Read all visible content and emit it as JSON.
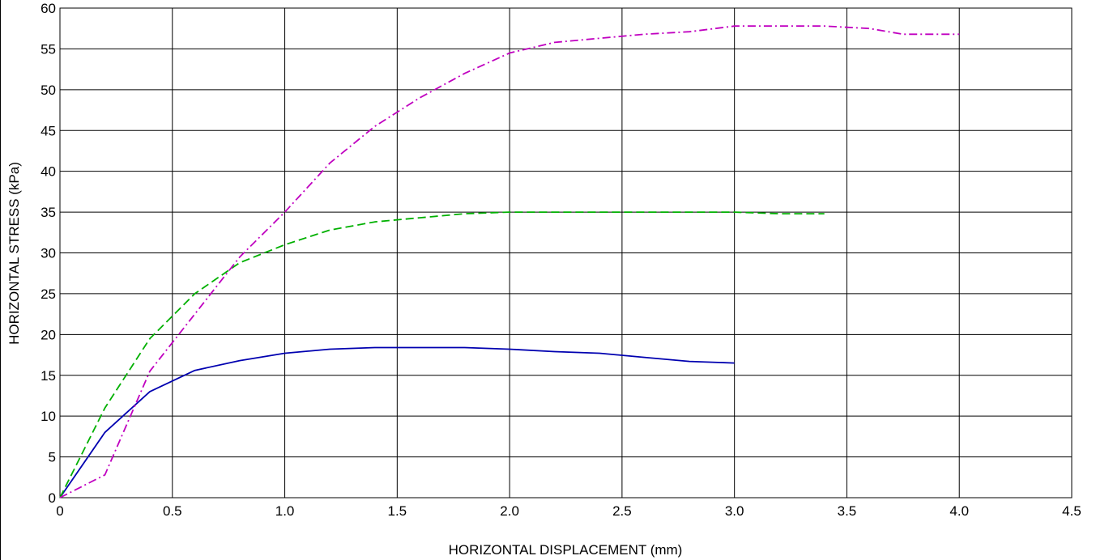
{
  "chart_data": {
    "type": "line",
    "title": "",
    "xlabel": "HORIZONTAL DISPLACEMENT (mm)",
    "ylabel": "HORIZONTAL STRESS (kPa)",
    "xlim": [
      0,
      4.5
    ],
    "ylim": [
      0,
      60
    ],
    "x_ticks": [
      0,
      0.5,
      1.0,
      1.5,
      2.0,
      2.5,
      3.0,
      3.5,
      4.0,
      4.5
    ],
    "x_tick_labels": [
      "0",
      "0.5",
      "1.0",
      "1.5",
      "2.0",
      "2.5",
      "3.0",
      "3.5",
      "4.0",
      "4.5"
    ],
    "y_ticks": [
      0,
      5,
      10,
      15,
      20,
      25,
      30,
      35,
      40,
      45,
      50,
      55,
      60
    ],
    "y_tick_labels": [
      "0",
      "5",
      "10",
      "15",
      "20",
      "25",
      "30",
      "35",
      "40",
      "45",
      "50",
      "55",
      "60"
    ],
    "grid": true,
    "legend": "none",
    "series": [
      {
        "style": "solid",
        "color": "#0000b0",
        "x": [
          0,
          0.2,
          0.4,
          0.6,
          0.8,
          1.0,
          1.2,
          1.4,
          1.6,
          1.8,
          2.0,
          2.2,
          2.4,
          2.6,
          2.8,
          3.0
        ],
        "y": [
          0,
          8.0,
          13.0,
          15.6,
          16.8,
          17.7,
          18.2,
          18.4,
          18.4,
          18.4,
          18.2,
          17.9,
          17.7,
          17.2,
          16.7,
          16.5
        ]
      },
      {
        "style": "dashed",
        "color": "#00b000",
        "x": [
          0,
          0.2,
          0.4,
          0.6,
          0.8,
          1.0,
          1.2,
          1.4,
          1.6,
          1.8,
          2.0,
          2.2,
          2.4,
          2.6,
          2.8,
          3.0,
          3.2,
          3.4
        ],
        "y": [
          0,
          11.0,
          19.5,
          25.0,
          28.8,
          31.0,
          32.8,
          33.8,
          34.3,
          34.8,
          35.0,
          35.0,
          35.0,
          35.0,
          35.0,
          35.0,
          34.8,
          34.8
        ]
      },
      {
        "style": "dashdot",
        "color": "#c000c0",
        "x": [
          0,
          0.2,
          0.4,
          0.6,
          0.8,
          1.0,
          1.2,
          1.4,
          1.6,
          1.8,
          2.0,
          2.2,
          2.4,
          2.6,
          2.8,
          3.0,
          3.2,
          3.4,
          3.6,
          3.75,
          4.0
        ],
        "y": [
          0,
          2.8,
          15.5,
          22.5,
          29.5,
          35.0,
          41.0,
          45.5,
          49.0,
          52.0,
          54.5,
          55.8,
          56.3,
          56.8,
          57.1,
          57.8,
          57.8,
          57.8,
          57.5,
          56.8,
          56.8
        ]
      }
    ]
  }
}
